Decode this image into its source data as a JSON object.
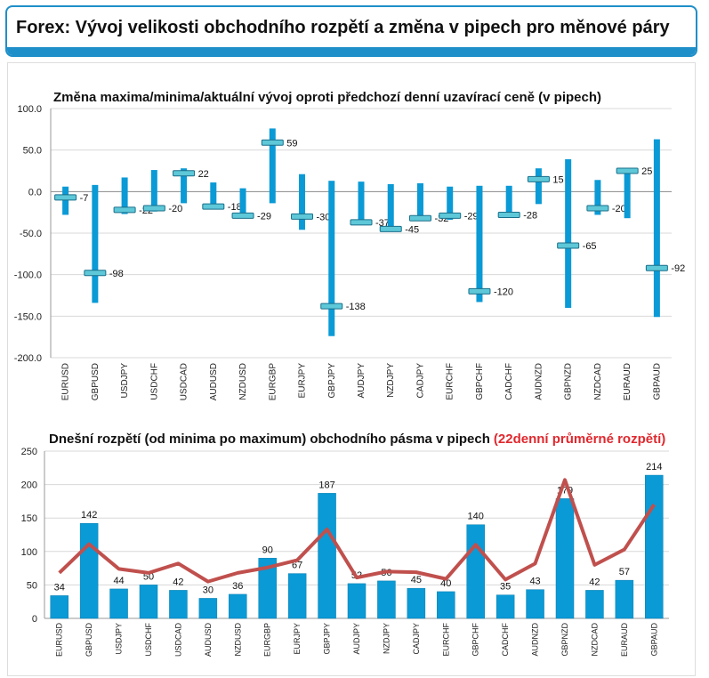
{
  "header": {
    "title": "Forex: Vývoj velikosti obchodního rozpětí a změna v pipech pro měnové páry"
  },
  "colors": {
    "bar": "#0a9ad6",
    "line": "#c0504d",
    "accent": "#1f8fc9",
    "title_red": "#e0282e"
  },
  "chart_data": [
    {
      "type": "range-bar",
      "title": "Změna maxima/minima/aktuální vývoj oproti předchozí denní uzavírací ceně (v pipech)",
      "ylim": [
        -200,
        100
      ],
      "yticks": [
        "100.0",
        "50.0",
        "0.0",
        "-50.0",
        "-100.0",
        "-150.0",
        "-200.0"
      ],
      "grid": true,
      "categories": [
        "EURUSD",
        "GBPUSD",
        "USDJPY",
        "USDCHF",
        "USDCAD",
        "AUDUSD",
        "NZDUSD",
        "EURGBP",
        "EURJPY",
        "GBPJPY",
        "AUDJPY",
        "NZDJPY",
        "CADJPY",
        "EURCHF",
        "GBPCHF",
        "CADCHF",
        "AUDNZD",
        "GBPNZD",
        "NZDCAD",
        "EURAUD",
        "GBPAUD"
      ],
      "high": [
        6,
        8,
        17,
        26,
        28,
        11,
        4,
        76,
        21,
        13,
        12,
        9,
        10,
        6,
        7,
        7,
        28,
        39,
        14,
        25,
        63
      ],
      "low": [
        -28,
        -134,
        -27,
        -24,
        -14,
        -19,
        -32,
        -14,
        -46,
        -174,
        -40,
        -47,
        -35,
        -34,
        -133,
        -28,
        -15,
        -140,
        -28,
        -32,
        -151
      ],
      "current": [
        -7,
        -98,
        -22,
        -20,
        22,
        -18,
        -29,
        59,
        -30,
        -138,
        -37,
        -45,
        -32,
        -29,
        -120,
        -28,
        15,
        -65,
        -20,
        25,
        -92
      ],
      "labels": [
        "-7",
        "-98",
        "-22",
        "-20",
        "22",
        "-18",
        "-29",
        "59",
        "-30",
        "-138",
        "-37",
        "-45",
        "-32",
        "-29",
        "-120",
        "-28",
        "15",
        "-65",
        "-20",
        "25",
        "-92"
      ]
    },
    {
      "type": "bar+line",
      "title": "Dnešní rozpětí (od minima po maximum) obchodního pásma v pipech",
      "title_red": "(22denní průměrné rozpětí)",
      "ylim": [
        0,
        250
      ],
      "yticks": [
        "250",
        "200",
        "150",
        "100",
        "50",
        "0"
      ],
      "grid": true,
      "categories": [
        "EURUSD",
        "GBPUSD",
        "USDJPY",
        "USDCHF",
        "USDCAD",
        "AUDUSD",
        "NZDUSD",
        "EURGBP",
        "EURJPY",
        "GBPJPY",
        "AUDJPY",
        "NZDJPY",
        "CADJPY",
        "EURCHF",
        "GBPCHF",
        "CADCHF",
        "AUDNZD",
        "GBPNZD",
        "NZDCAD",
        "EURAUD",
        "GBPAUD"
      ],
      "series": [
        {
          "type": "bar",
          "values": [
            34,
            142,
            44,
            50,
            42,
            30,
            36,
            90,
            67,
            187,
            52,
            56,
            45,
            40,
            140,
            35,
            43,
            179,
            42,
            57,
            214
          ],
          "labels": [
            "34",
            "142",
            "44",
            "50",
            "42",
            "30",
            "36",
            "90",
            "67",
            "187",
            "52",
            "56",
            "45",
            "40",
            "140",
            "35",
            "43",
            "179",
            "42",
            "57",
            "214"
          ]
        },
        {
          "type": "line",
          "name": "(22denní průměrné rozpětí)",
          "values": [
            68,
            111,
            74,
            68,
            82,
            55,
            68,
            76,
            87,
            133,
            61,
            70,
            69,
            59,
            110,
            58,
            82,
            207,
            80,
            103,
            170
          ]
        }
      ]
    }
  ]
}
